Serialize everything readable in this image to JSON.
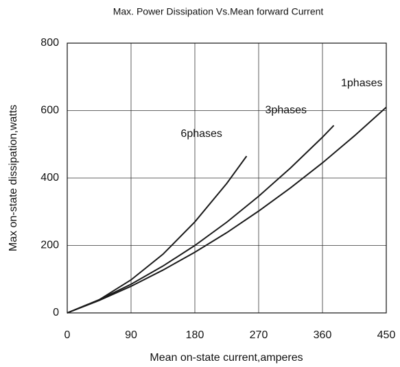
{
  "chart_data": {
    "type": "line",
    "title": "Max. Power Dissipation Vs.Mean forward Current",
    "x_label": "Mean on-state current,amperes",
    "y_label": "Max on-state dissipation,watts",
    "xlim": [
      0,
      450
    ],
    "ylim": [
      0,
      800
    ],
    "xticks": [
      0,
      90,
      180,
      270,
      360,
      450
    ],
    "yticks": [
      0,
      200,
      400,
      600,
      800
    ],
    "grid": true,
    "series": [
      {
        "name": "1phases",
        "color": "#1a1a1a",
        "x": [
          0,
          45,
          90,
          135,
          180,
          225,
          270,
          315,
          360,
          405,
          450
        ],
        "values": [
          0,
          37,
          79,
          127,
          180,
          238,
          302,
          371,
          445,
          525,
          610
        ]
      },
      {
        "name": "3phases",
        "color": "#1a1a1a",
        "x": [
          0,
          45,
          90,
          135,
          180,
          225,
          270,
          315,
          360,
          376
        ],
        "values": [
          0,
          39,
          85,
          139,
          200,
          269,
          346,
          430,
          521,
          556
        ]
      },
      {
        "name": "6phases",
        "color": "#1a1a1a",
        "x": [
          0,
          45,
          90,
          135,
          180,
          225,
          253
        ],
        "values": [
          0,
          39,
          98,
          174,
          270,
          384,
          465
        ]
      }
    ]
  }
}
